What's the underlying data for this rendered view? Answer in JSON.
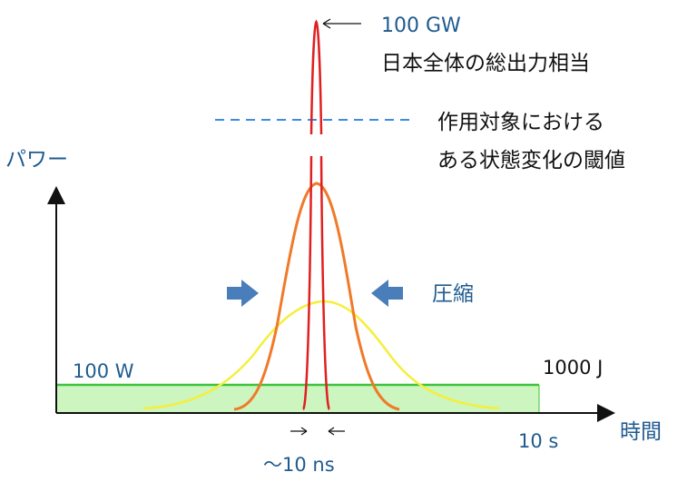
{
  "labels": {
    "y_axis": "パワー",
    "x_axis": "時間",
    "peak_power": "100 GW",
    "peak_note": "日本全体の総出力相当",
    "threshold_line1": "作用対象における",
    "threshold_line2": "ある状態変化の閾値",
    "compress": "圧縮",
    "base_power": "100 W",
    "energy": "1000 J",
    "duration": "10 s",
    "pulse_width": "〜10 ns"
  },
  "colors": {
    "axis": "#111111",
    "text_blue": "#1f5b8f",
    "arrow_fill": "#4a7ebb",
    "threshold": "#3b8de0",
    "base_fill": "#ccf5c0",
    "base_stroke": "#3cc43c",
    "wide_pulse": "#f5ef3a",
    "mid_pulse": "#f07a2a",
    "narrow_pulse": "#e02020"
  },
  "icons": {
    "left_compress_arrow": "arrow-right-icon",
    "right_compress_arrow": "arrow-left-icon",
    "peak_pointer": "arrow-left-thin-icon"
  }
}
